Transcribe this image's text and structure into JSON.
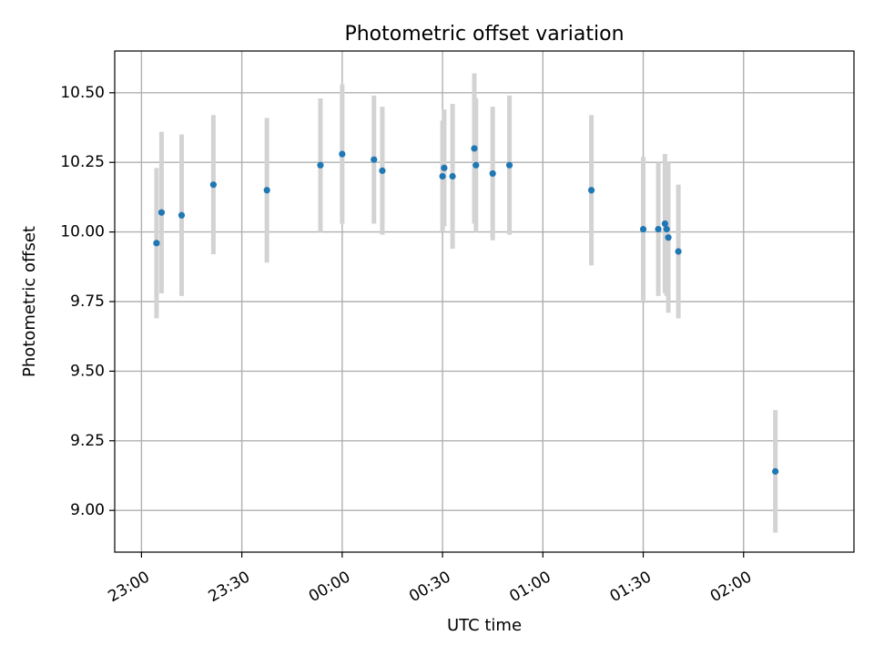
{
  "chart_data": {
    "type": "scatter",
    "title": "Photometric offset variation",
    "xlabel": "UTC time",
    "ylabel": "Photometric offset",
    "grid": true,
    "x_type": "time",
    "xlim": [
      "22:52",
      "02:33"
    ],
    "ylim": [
      8.85,
      10.65
    ],
    "x_ticks": [
      "23:00",
      "23:30",
      "00:00",
      "00:30",
      "01:00",
      "01:30",
      "02:00"
    ],
    "y_ticks": [
      "9.00",
      "9.25",
      "9.50",
      "9.75",
      "10.00",
      "10.25",
      "10.50"
    ],
    "point_color": "#1f77b4",
    "errorbar_color": "#d3d3d3",
    "points": [
      {
        "x": "23:04:30",
        "y": 9.96,
        "yerr": 0.27
      },
      {
        "x": "23:06:00",
        "y": 10.07,
        "yerr": 0.29
      },
      {
        "x": "23:12:00",
        "y": 10.06,
        "yerr": 0.29
      },
      {
        "x": "23:21:30",
        "y": 10.17,
        "yerr": 0.25
      },
      {
        "x": "23:37:30",
        "y": 10.15,
        "yerr": 0.26
      },
      {
        "x": "23:53:30",
        "y": 10.24,
        "yerr": 0.24
      },
      {
        "x": "00:00:00",
        "y": 10.28,
        "yerr": 0.25
      },
      {
        "x": "00:09:30",
        "y": 10.26,
        "yerr": 0.23
      },
      {
        "x": "00:12:00",
        "y": 10.22,
        "yerr": 0.23
      },
      {
        "x": "00:30:00",
        "y": 10.2,
        "yerr": 0.2
      },
      {
        "x": "00:30:30",
        "y": 10.23,
        "yerr": 0.21
      },
      {
        "x": "00:33:00",
        "y": 10.2,
        "yerr": 0.26
      },
      {
        "x": "00:39:30",
        "y": 10.3,
        "yerr": 0.27
      },
      {
        "x": "00:40:00",
        "y": 10.24,
        "yerr": 0.24
      },
      {
        "x": "00:45:00",
        "y": 10.21,
        "yerr": 0.24
      },
      {
        "x": "00:50:00",
        "y": 10.24,
        "yerr": 0.25
      },
      {
        "x": "01:14:30",
        "y": 10.15,
        "yerr": 0.27
      },
      {
        "x": "01:30:00",
        "y": 10.01,
        "yerr": 0.26
      },
      {
        "x": "01:34:30",
        "y": 10.01,
        "yerr": 0.24
      },
      {
        "x": "01:36:30",
        "y": 10.03,
        "yerr": 0.25
      },
      {
        "x": "01:37:00",
        "y": 10.01,
        "yerr": 0.24
      },
      {
        "x": "01:37:30",
        "y": 9.98,
        "yerr": 0.27
      },
      {
        "x": "01:40:30",
        "y": 9.93,
        "yerr": 0.24
      },
      {
        "x": "02:09:30",
        "y": 9.14,
        "yerr": 0.22
      }
    ]
  }
}
